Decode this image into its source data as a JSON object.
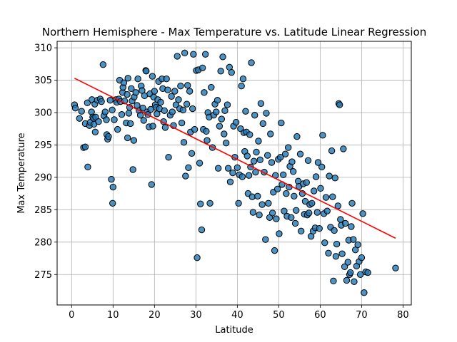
{
  "chart_data": {
    "type": "scatter",
    "title": "Northern Hemisphere - Max Temperature vs. Latitude Linear Regression",
    "xlabel": "Latitude",
    "ylabel": "Max Temperature",
    "xlim": [
      -3.5,
      82
    ],
    "ylim": [
      270.3,
      311
    ],
    "xticks": [
      0,
      10,
      20,
      30,
      40,
      50,
      60,
      70,
      80
    ],
    "yticks": [
      275,
      280,
      285,
      290,
      295,
      300,
      305,
      310
    ],
    "grid": true,
    "point_color": "#1f77b4",
    "point_edge_color": "#000000",
    "regression_color": "#ff0000",
    "regression_line": {
      "x": [
        0.7,
        78.2
      ],
      "y": [
        305.3,
        280.6
      ]
    },
    "series": [
      {
        "points": [
          [
            0.7,
            301.2
          ],
          [
            0.9,
            300.7
          ],
          [
            1.9,
            299.1
          ],
          [
            2.4,
            300.2
          ],
          [
            2.9,
            294.6
          ],
          [
            3.3,
            294.7
          ],
          [
            3.3,
            298.3
          ],
          [
            3.8,
            301.5
          ],
          [
            3.9,
            291.6
          ],
          [
            4.3,
            298.0
          ],
          [
            4.5,
            298.5
          ],
          [
            4.8,
            300.1
          ],
          [
            4.9,
            302.0
          ],
          [
            5.1,
            299.3
          ],
          [
            5.3,
            299.1
          ],
          [
            5.4,
            298.2
          ],
          [
            5.6,
            301.3
          ],
          [
            5.7,
            297.0
          ],
          [
            5.8,
            299.3
          ],
          [
            6.2,
            301.9
          ],
          [
            6.5,
            298.6
          ],
          [
            6.9,
            302.1
          ],
          [
            7.2,
            301.7
          ],
          [
            7.6,
            307.4
          ],
          [
            7.8,
            299.5
          ],
          [
            8.1,
            300.1
          ],
          [
            8.4,
            298.9
          ],
          [
            8.5,
            296.6
          ],
          [
            8.7,
            295.9
          ],
          [
            8.9,
            296.3
          ],
          [
            9.3,
            301.9
          ],
          [
            9.6,
            289.7
          ],
          [
            9.8,
            300.4
          ],
          [
            9.9,
            286.0
          ],
          [
            10.0,
            288.5
          ],
          [
            10.3,
            298.9
          ],
          [
            10.7,
            302.0
          ],
          [
            10.9,
            301.6
          ],
          [
            11.1,
            297.4
          ],
          [
            11.4,
            302.1
          ],
          [
            11.6,
            305.0
          ],
          [
            11.8,
            301.7
          ],
          [
            12.1,
            299.7
          ],
          [
            12.3,
            303.1
          ],
          [
            12.4,
            303.9
          ],
          [
            12.6,
            304.6
          ],
          [
            12.8,
            301.8
          ],
          [
            13.2,
            298.4
          ],
          [
            13.4,
            302.8
          ],
          [
            13.5,
            296.1
          ],
          [
            13.6,
            305.3
          ],
          [
            13.8,
            299.9
          ],
          [
            14.0,
            300.8
          ],
          [
            14.2,
            298.3
          ],
          [
            14.4,
            303.7
          ],
          [
            14.6,
            301.8
          ],
          [
            14.8,
            291.2
          ],
          [
            15.0,
            295.7
          ],
          [
            15.1,
            302.4
          ],
          [
            15.5,
            303.1
          ],
          [
            15.8,
            301.1
          ],
          [
            16.0,
            305.2
          ],
          [
            16.3,
            300.3
          ],
          [
            16.6,
            299.6
          ],
          [
            16.8,
            304.1
          ],
          [
            17.0,
            303.4
          ],
          [
            17.2,
            300.7
          ],
          [
            17.4,
            298.8
          ],
          [
            17.6,
            302.6
          ],
          [
            17.9,
            306.5
          ],
          [
            18.0,
            306.4
          ],
          [
            18.2,
            300.1
          ],
          [
            18.4,
            299.7
          ],
          [
            18.7,
            297.8
          ],
          [
            18.9,
            302.9
          ],
          [
            19.1,
            300.5
          ],
          [
            19.3,
            288.9
          ],
          [
            19.5,
            305.6
          ],
          [
            19.6,
            297.9
          ],
          [
            19.8,
            302.4
          ],
          [
            20.0,
            303.3
          ],
          [
            20.2,
            301.2
          ],
          [
            20.4,
            300.8
          ],
          [
            20.6,
            299.8
          ],
          [
            20.8,
            302.0
          ],
          [
            21.0,
            304.8
          ],
          [
            21.2,
            300.6
          ],
          [
            21.5,
            301.6
          ],
          [
            21.8,
            305.2
          ],
          [
            22.0,
            303.7
          ],
          [
            22.2,
            298.6
          ],
          [
            22.4,
            300.3
          ],
          [
            22.6,
            297.7
          ],
          [
            22.9,
            305.2
          ],
          [
            23.2,
            303.5
          ],
          [
            23.4,
            293.1
          ],
          [
            23.8,
            299.6
          ],
          [
            24.1,
            302.5
          ],
          [
            24.3,
            300.1
          ],
          [
            24.6,
            298.0
          ],
          [
            24.9,
            303.3
          ],
          [
            25.2,
            301.2
          ],
          [
            25.5,
            308.7
          ],
          [
            25.8,
            302.0
          ],
          [
            26.1,
            300.6
          ],
          [
            26.3,
            304.1
          ],
          [
            26.6,
            298.4
          ],
          [
            26.9,
            300.4
          ],
          [
            27.1,
            295.4
          ],
          [
            27.3,
            309.2
          ],
          [
            27.5,
            290.2
          ],
          [
            27.8,
            301.3
          ],
          [
            28.0,
            304.2
          ],
          [
            28.2,
            291.5
          ],
          [
            28.5,
            303.3
          ],
          [
            28.7,
            297.0
          ],
          [
            29.0,
            293.7
          ],
          [
            29.2,
            300.6
          ],
          [
            29.4,
            309.0
          ],
          [
            29.7,
            297.4
          ],
          [
            30.1,
            306.5
          ],
          [
            30.3,
            277.6
          ],
          [
            30.6,
            306.6
          ],
          [
            30.9,
            292.2
          ],
          [
            31.1,
            285.9
          ],
          [
            31.4,
            281.9
          ],
          [
            31.6,
            306.9
          ],
          [
            31.8,
            297.4
          ],
          [
            32.0,
            303.1
          ],
          [
            32.3,
            309.0
          ],
          [
            32.5,
            297.1
          ],
          [
            32.7,
            295.7
          ],
          [
            32.9,
            300.0
          ],
          [
            33.2,
            299.3
          ],
          [
            33.4,
            286.0
          ],
          [
            33.7,
            303.9
          ],
          [
            34.0,
            294.6
          ],
          [
            34.3,
            299.6
          ],
          [
            34.6,
            301.3
          ],
          [
            34.9,
            300.1
          ],
          [
            35.2,
            301.9
          ],
          [
            35.4,
            291.4
          ],
          [
            35.7,
            297.9
          ],
          [
            36.0,
            306.4
          ],
          [
            36.2,
            299.0
          ],
          [
            36.5,
            308.6
          ],
          [
            36.8,
            296.7
          ],
          [
            37.0,
            300.3
          ],
          [
            37.3,
            295.3
          ],
          [
            37.6,
            301.2
          ],
          [
            37.8,
            291.4
          ],
          [
            38.1,
            307.0
          ],
          [
            38.3,
            289.3
          ],
          [
            38.6,
            306.2
          ],
          [
            38.9,
            290.7
          ],
          [
            39.1,
            297.9
          ],
          [
            39.4,
            293.1
          ],
          [
            39.7,
            298.5
          ],
          [
            40.0,
            291.5
          ],
          [
            40.3,
            286.0
          ],
          [
            40.5,
            290.4
          ],
          [
            40.8,
            297.5
          ],
          [
            41.0,
            304.1
          ],
          [
            41.2,
            290.1
          ],
          [
            41.4,
            305.2
          ],
          [
            41.6,
            296.9
          ],
          [
            41.8,
            294.0
          ],
          [
            42.0,
            300.2
          ],
          [
            42.2,
            297.0
          ],
          [
            42.4,
            293.3
          ],
          [
            42.6,
            287.5
          ],
          [
            42.8,
            290.3
          ],
          [
            43.0,
            296.6
          ],
          [
            43.2,
            291.6
          ],
          [
            43.4,
            307.7
          ],
          [
            43.6,
            287.0
          ],
          [
            43.8,
            284.6
          ],
          [
            44.0,
            292.5
          ],
          [
            44.2,
            299.6
          ],
          [
            44.4,
            290.8
          ],
          [
            44.6,
            293.9
          ],
          [
            44.9,
            287.1
          ],
          [
            45.1,
            295.6
          ],
          [
            45.3,
            284.2
          ],
          [
            45.5,
            292.7
          ],
          [
            45.7,
            301.4
          ],
          [
            46.0,
            285.8
          ],
          [
            46.2,
            298.3
          ],
          [
            46.5,
            290.8
          ],
          [
            46.8,
            280.4
          ],
          [
            47.0,
            299.9
          ],
          [
            47.3,
            293.4
          ],
          [
            47.5,
            286.0
          ],
          [
            47.8,
            283.8
          ],
          [
            48.0,
            296.7
          ],
          [
            48.3,
            292.3
          ],
          [
            48.5,
            284.5
          ],
          [
            48.7,
            287.7
          ],
          [
            49.0,
            278.7
          ],
          [
            49.2,
            290.3
          ],
          [
            49.4,
            283.6
          ],
          [
            49.7,
            288.2
          ],
          [
            49.9,
            292.8
          ],
          [
            50.1,
            281.3
          ],
          [
            50.4,
            293.1
          ],
          [
            50.6,
            298.4
          ],
          [
            50.8,
            288.9
          ],
          [
            51.1,
            290.4
          ],
          [
            51.3,
            284.8
          ],
          [
            51.6,
            293.6
          ],
          [
            51.8,
            287.5
          ],
          [
            52.0,
            284.0
          ],
          [
            52.3,
            294.6
          ],
          [
            52.5,
            288.5
          ],
          [
            52.7,
            291.7
          ],
          [
            53.0,
            283.8
          ],
          [
            53.2,
            292.4
          ],
          [
            53.5,
            290.9
          ],
          [
            53.7,
            287.1
          ],
          [
            54.0,
            282.9
          ],
          [
            54.2,
            284.9
          ],
          [
            54.4,
            296.3
          ],
          [
            54.7,
            289.4
          ],
          [
            54.9,
            288.6
          ],
          [
            55.2,
            293.6
          ],
          [
            55.4,
            281.7
          ],
          [
            55.7,
            287.5
          ],
          [
            55.9,
            289.0
          ],
          [
            56.2,
            284.3
          ],
          [
            56.4,
            286.3
          ],
          [
            56.7,
            289.2
          ],
          [
            56.9,
            284.2
          ],
          [
            57.1,
            292.6
          ],
          [
            57.3,
            284.5
          ],
          [
            57.5,
            285.8
          ],
          [
            57.8,
            280.9
          ],
          [
            58.0,
            286.0
          ],
          [
            58.3,
            281.7
          ],
          [
            58.5,
            287.9
          ],
          [
            58.8,
            282.2
          ],
          [
            59.0,
            290.1
          ],
          [
            59.3,
            284.6
          ],
          [
            59.5,
            292.3
          ],
          [
            59.8,
            282.1
          ],
          [
            60.1,
            288.3
          ],
          [
            60.4,
            291.6
          ],
          [
            60.6,
            296.5
          ],
          [
            60.9,
            284.4
          ],
          [
            61.1,
            279.9
          ],
          [
            61.4,
            286.9
          ],
          [
            61.7,
            284.8
          ],
          [
            62.0,
            278.3
          ],
          [
            62.2,
            290.2
          ],
          [
            62.5,
            282.3
          ],
          [
            62.8,
            294.1
          ],
          [
            63.0,
            287.0
          ],
          [
            63.2,
            274.0
          ],
          [
            63.4,
            281.8
          ],
          [
            63.6,
            289.9
          ],
          [
            63.8,
            277.8
          ],
          [
            64.0,
            279.7
          ],
          [
            64.3,
            285.6
          ],
          [
            64.5,
            301.4
          ],
          [
            64.7,
            301.2
          ],
          [
            64.9,
            283.5
          ],
          [
            65.1,
            282.6
          ],
          [
            65.3,
            278.2
          ],
          [
            65.6,
            294.4
          ],
          [
            65.9,
            276.2
          ],
          [
            66.1,
            282.9
          ],
          [
            66.4,
            274.1
          ],
          [
            66.7,
            276.9
          ],
          [
            66.9,
            280.3
          ],
          [
            67.1,
            275.0
          ],
          [
            67.3,
            275.3
          ],
          [
            67.5,
            282.4
          ],
          [
            67.7,
            286.0
          ],
          [
            68.0,
            280.4
          ],
          [
            68.2,
            273.9
          ],
          [
            68.5,
            278.8
          ],
          [
            68.8,
            276.3
          ],
          [
            69.1,
            279.6
          ],
          [
            69.4,
            277.0
          ],
          [
            69.7,
            275.0
          ],
          [
            70.0,
            277.6
          ],
          [
            70.3,
            284.4
          ],
          [
            70.6,
            272.2
          ],
          [
            71.0,
            275.4
          ],
          [
            71.5,
            275.3
          ],
          [
            78.2,
            276.0
          ]
        ]
      }
    ]
  }
}
